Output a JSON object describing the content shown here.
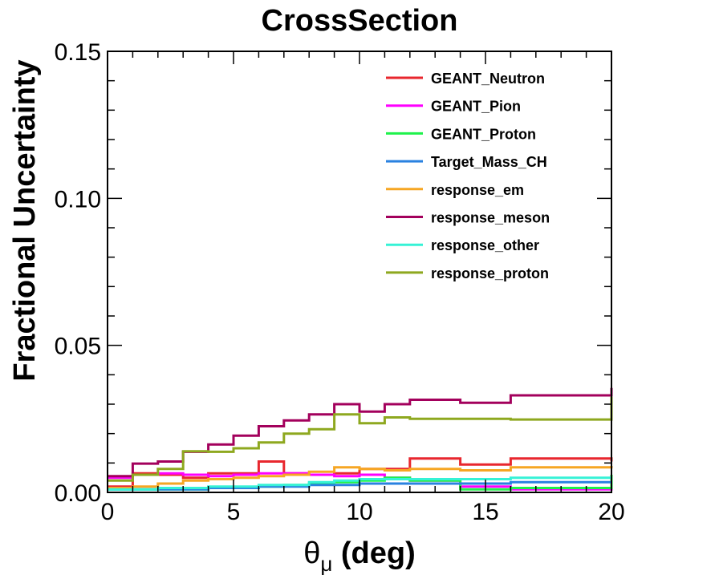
{
  "chart_data": {
    "type": "line",
    "title": "CrossSection",
    "xlabel": "θμ (deg)",
    "xlabel_main": "θ",
    "xlabel_sub": "μ",
    "xlabel_rest": " (deg)",
    "ylabel": "Fractional Uncertainty",
    "xlim": [
      0,
      20
    ],
    "ylim": [
      0,
      0.15
    ],
    "x_ticks": [
      "0",
      "5",
      "10",
      "15",
      "20"
    ],
    "y_ticks": [
      "0.00",
      "0.05",
      "0.10",
      "0.15"
    ],
    "bin_edges": [
      0,
      1,
      2,
      3,
      4,
      5,
      6,
      7,
      8,
      9,
      10,
      11,
      12,
      14,
      16,
      20
    ],
    "legend_position": "top-right",
    "grid": false,
    "series": [
      {
        "name": "GEANT_Neutron",
        "color": "#e8272e",
        "values": [
          0.002,
          0.0065,
          0.006,
          0.005,
          0.0065,
          0.0065,
          0.0105,
          0.0065,
          0.006,
          0.0065,
          0.008,
          0.008,
          0.0115,
          0.0095,
          0.0115,
          0.0105
        ]
      },
      {
        "name": "GEANT_Pion",
        "color": "#ff00ff",
        "values": [
          0.005,
          0.006,
          0.0065,
          0.006,
          0.0055,
          0.006,
          0.0065,
          0.0065,
          0.006,
          0.0055,
          0.006,
          0.005,
          0.004,
          0.002,
          0.001,
          0.002
        ]
      },
      {
        "name": "GEANT_Proton",
        "color": "#1ef24a",
        "values": [
          0.001,
          0.001,
          0.001,
          0.001,
          0.0015,
          0.0015,
          0.002,
          0.0025,
          0.003,
          0.0035,
          0.004,
          0.005,
          0.004,
          0.001,
          0.0015,
          0.006
        ]
      },
      {
        "name": "Target_Mass_CH",
        "color": "#2a82e0",
        "values": [
          0.001,
          0.001,
          0.001,
          0.001,
          0.0015,
          0.0015,
          0.002,
          0.002,
          0.0025,
          0.0025,
          0.003,
          0.003,
          0.003,
          0.003,
          0.0035,
          0.0035
        ]
      },
      {
        "name": "response_em",
        "color": "#f6a623",
        "values": [
          0.0015,
          0.002,
          0.003,
          0.004,
          0.0045,
          0.005,
          0.0055,
          0.006,
          0.007,
          0.0085,
          0.008,
          0.0075,
          0.008,
          0.0075,
          0.0085,
          0.009
        ]
      },
      {
        "name": "response_meson",
        "color": "#a3005c",
        "values": [
          0.0055,
          0.0098,
          0.0105,
          0.0138,
          0.0163,
          0.0193,
          0.0225,
          0.0245,
          0.0265,
          0.03,
          0.0275,
          0.03,
          0.0315,
          0.0305,
          0.033,
          0.0355
        ]
      },
      {
        "name": "response_other",
        "color": "#36f2d6",
        "values": [
          0.001,
          0.001,
          0.0015,
          0.0015,
          0.002,
          0.002,
          0.0025,
          0.0025,
          0.0035,
          0.004,
          0.0045,
          0.0045,
          0.0045,
          0.0045,
          0.005,
          0.005
        ]
      },
      {
        "name": "response_proton",
        "color": "#8ea81f",
        "values": [
          0.004,
          0.006,
          0.008,
          0.014,
          0.0138,
          0.015,
          0.017,
          0.02,
          0.0215,
          0.0265,
          0.0235,
          0.0255,
          0.025,
          0.025,
          0.0248,
          0.0325
        ]
      }
    ]
  }
}
